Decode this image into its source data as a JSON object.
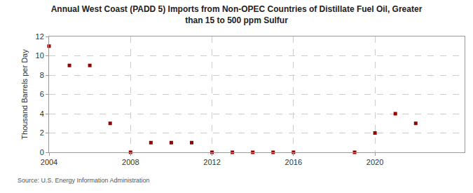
{
  "chart_data": {
    "type": "scatter",
    "title": [
      "Annual West Coast (PADD 5) Imports from Non-OPEC Countries of Distillate Fuel Oil, Greater",
      "than 15 to 500 ppm Sulfur"
    ],
    "y_label": "Thousand Barrels per Day",
    "source": "Source: U.S. Energy Information Administration",
    "x": [
      2004,
      2005,
      2006,
      2007,
      2008,
      2009,
      2010,
      2011,
      2012,
      2013,
      2014,
      2015,
      2016,
      2019,
      2020,
      2021,
      2022
    ],
    "values": [
      11,
      9,
      9,
      3,
      0,
      1,
      1,
      1,
      0,
      0,
      0,
      0,
      0,
      0,
      2,
      4,
      3
    ],
    "color": "#990000",
    "marker": "square",
    "xlim": [
      2004,
      2024.4
    ],
    "xticks": [
      2004,
      2008,
      2012,
      2016,
      2020
    ],
    "ylim": [
      0,
      12
    ],
    "yticks": [
      0,
      2,
      4,
      6,
      8,
      10,
      12
    ],
    "grid": true
  }
}
